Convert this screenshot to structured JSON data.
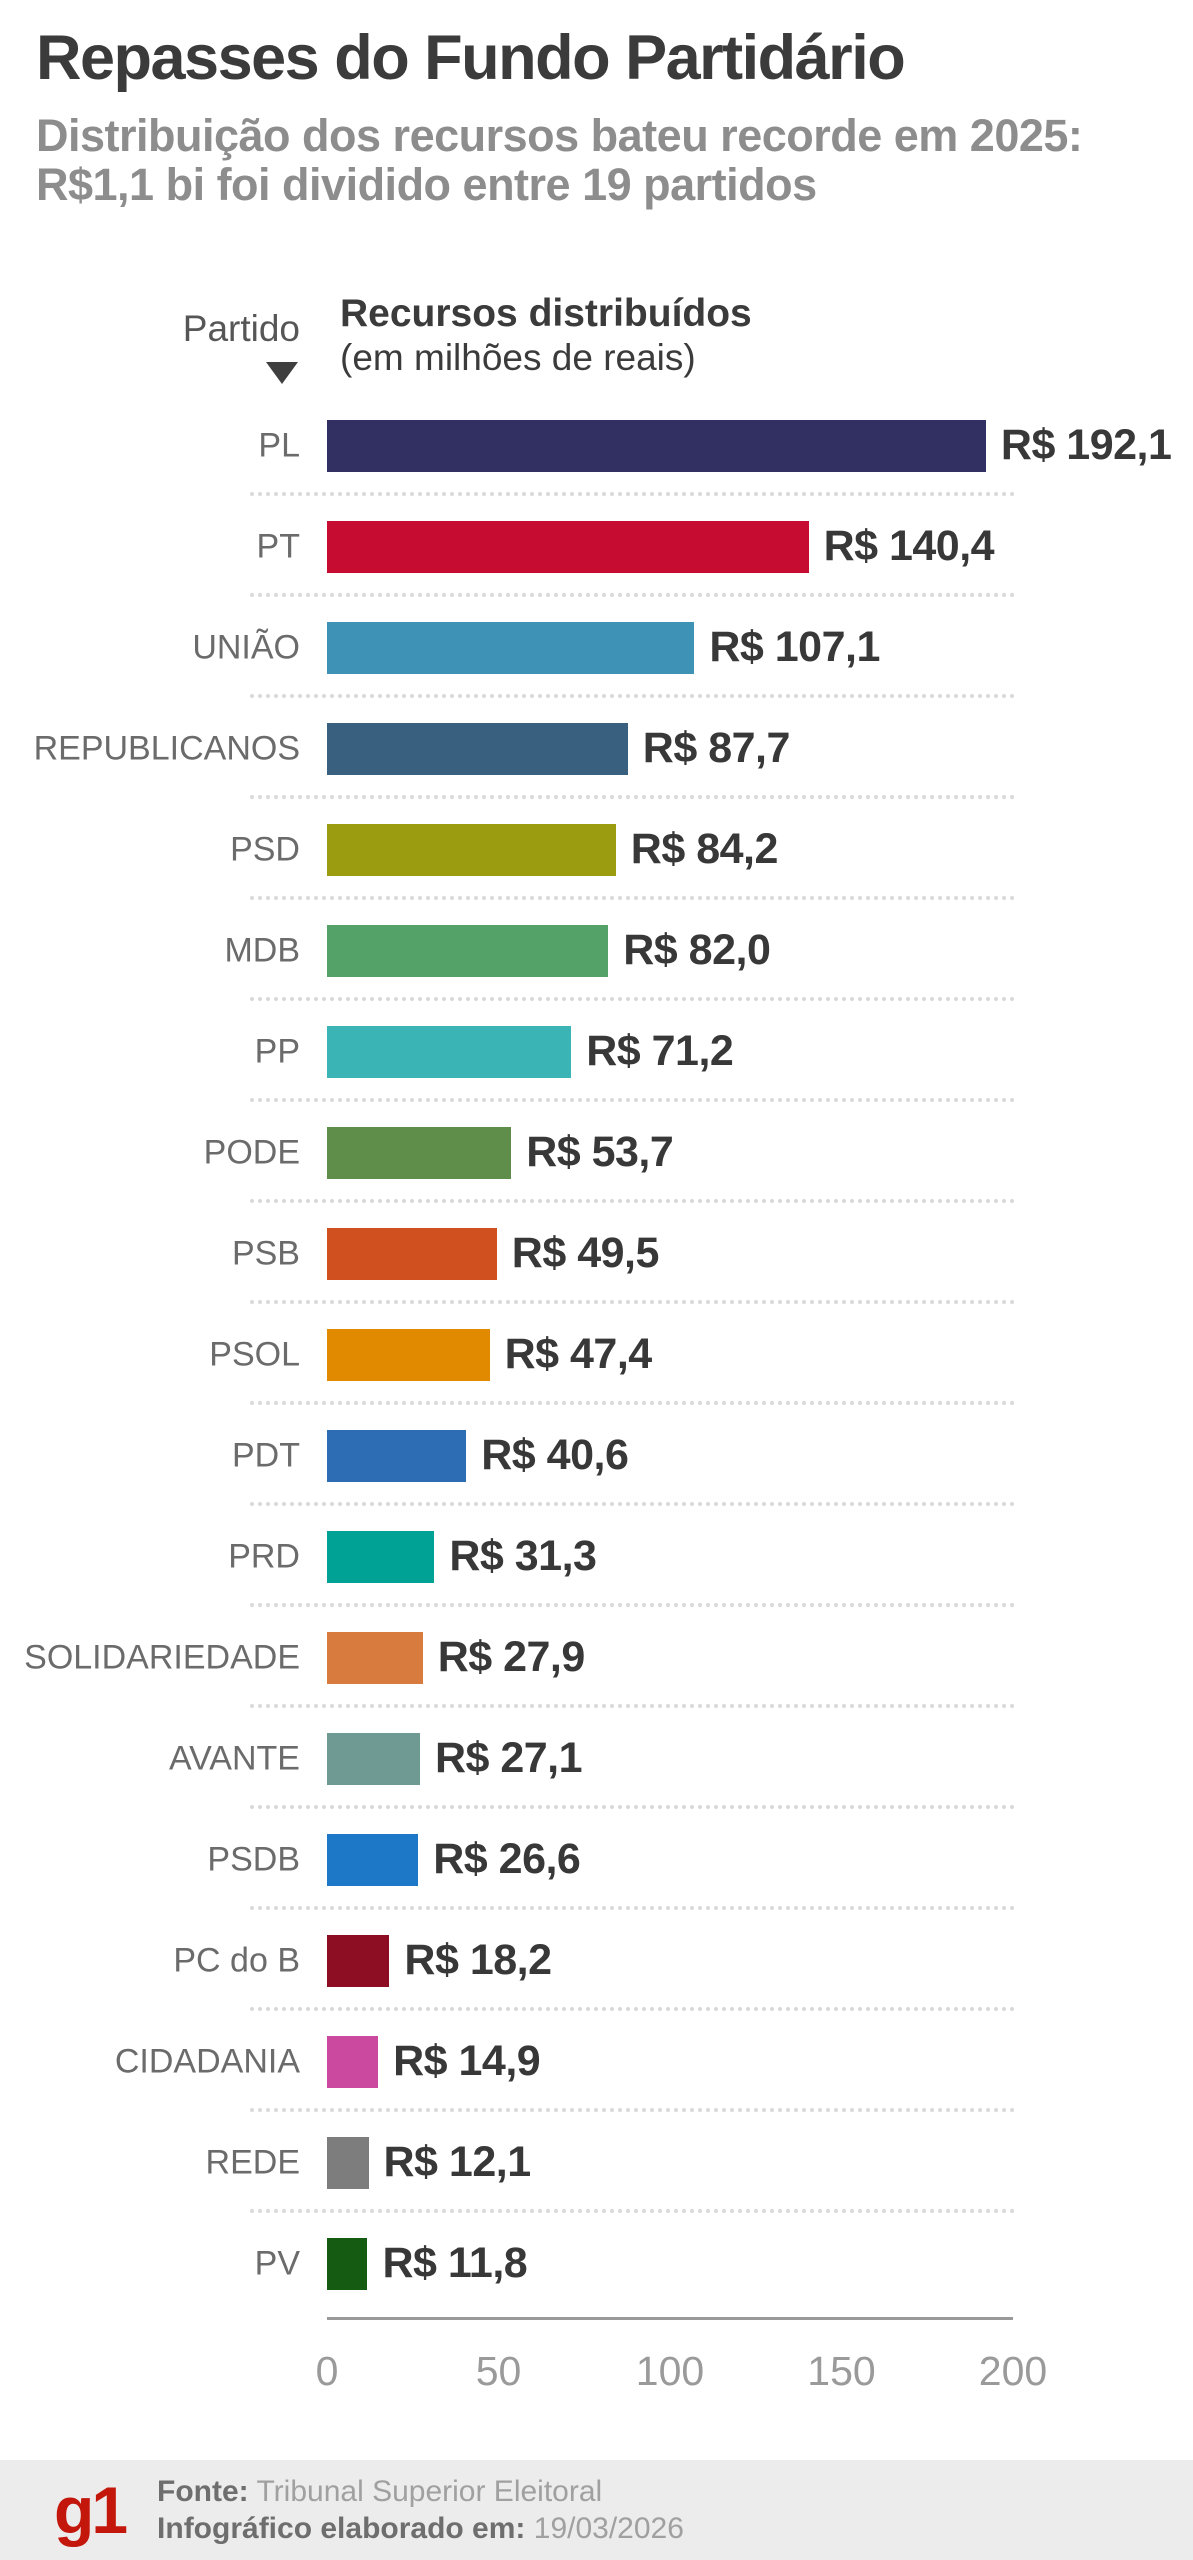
{
  "header": {
    "title": "Repasses do Fundo Partidário",
    "subtitle": "Distribuição dos recursos bateu recorde em 2025: R$1,1 bi foi dividido entre 19 partidos"
  },
  "table_header": {
    "party_column_label": "Partido",
    "sort_icon": "triangle-down-icon",
    "value_column_label": "Recursos distribuídos",
    "value_column_sublabel": "(em milhões de reais)"
  },
  "chart_data": {
    "type": "bar",
    "orientation": "horizontal",
    "title": "Recursos distribuídos (em milhões de reais)",
    "xlabel": "",
    "ylabel": "Partido",
    "xlim": [
      0,
      200
    ],
    "x_ticks": [
      0,
      50,
      100,
      150,
      200
    ],
    "grid": false,
    "categories": [
      "PL",
      "PT",
      "UNIÃO",
      "REPUBLICANOS",
      "PSD",
      "MDB",
      "PP",
      "PODE",
      "PSB",
      "PSOL",
      "PDT",
      "PRD",
      "SOLIDARIEDADE",
      "AVANTE",
      "PSDB",
      "PC do B",
      "CIDADANIA",
      "REDE",
      "PV"
    ],
    "values": [
      192.1,
      140.4,
      107.1,
      87.7,
      84.2,
      82.0,
      71.2,
      53.7,
      49.5,
      47.4,
      40.6,
      31.3,
      27.9,
      27.1,
      26.6,
      18.2,
      14.9,
      12.1,
      11.8
    ],
    "value_labels": [
      "R$ 192,1",
      "R$ 140,4",
      "R$ 107,1",
      "R$ 87,7",
      "R$ 84,2",
      "R$ 82,0",
      "R$ 71,2",
      "R$ 53,7",
      "R$ 49,5",
      "R$ 47,4",
      "R$ 40,6",
      "R$ 31,3",
      "R$ 27,9",
      "R$ 27,1",
      "R$ 26,6",
      "R$ 18,2",
      "R$ 14,9",
      "R$ 12,1",
      "R$ 11,8"
    ],
    "bar_colors": [
      "#322f63",
      "#c60c30",
      "#3d92b5",
      "#39607f",
      "#9c9c10",
      "#55a268",
      "#3ab4b4",
      "#5f8d4a",
      "#d0501f",
      "#e18a00",
      "#2c6db4",
      "#00a295",
      "#d87b3e",
      "#6f9a93",
      "#1d78c8",
      "#8d0d22",
      "#cb4aa0",
      "#7d7d7d",
      "#155c12"
    ]
  },
  "axis": {
    "tick_labels": [
      "0",
      "50",
      "100",
      "150",
      "200"
    ]
  },
  "footer": {
    "logo_text": "g1",
    "source_label": "Fonte:",
    "source_value": "Tribunal Superior Eleitoral",
    "date_label": "Infográfico elaborado em:",
    "date_value": "19/03/2026"
  },
  "colors": {
    "title_text": "#3b3b3b",
    "subtitle_text": "#8d8d8d",
    "row_label_text": "#6b6b6b",
    "value_text": "#383838",
    "separator_dotted": "#d9d9d9",
    "axis_line": "#999999",
    "axis_tick_text": "#9a9a9a",
    "footer_background": "#ececec",
    "logo_red": "#c4170c"
  }
}
